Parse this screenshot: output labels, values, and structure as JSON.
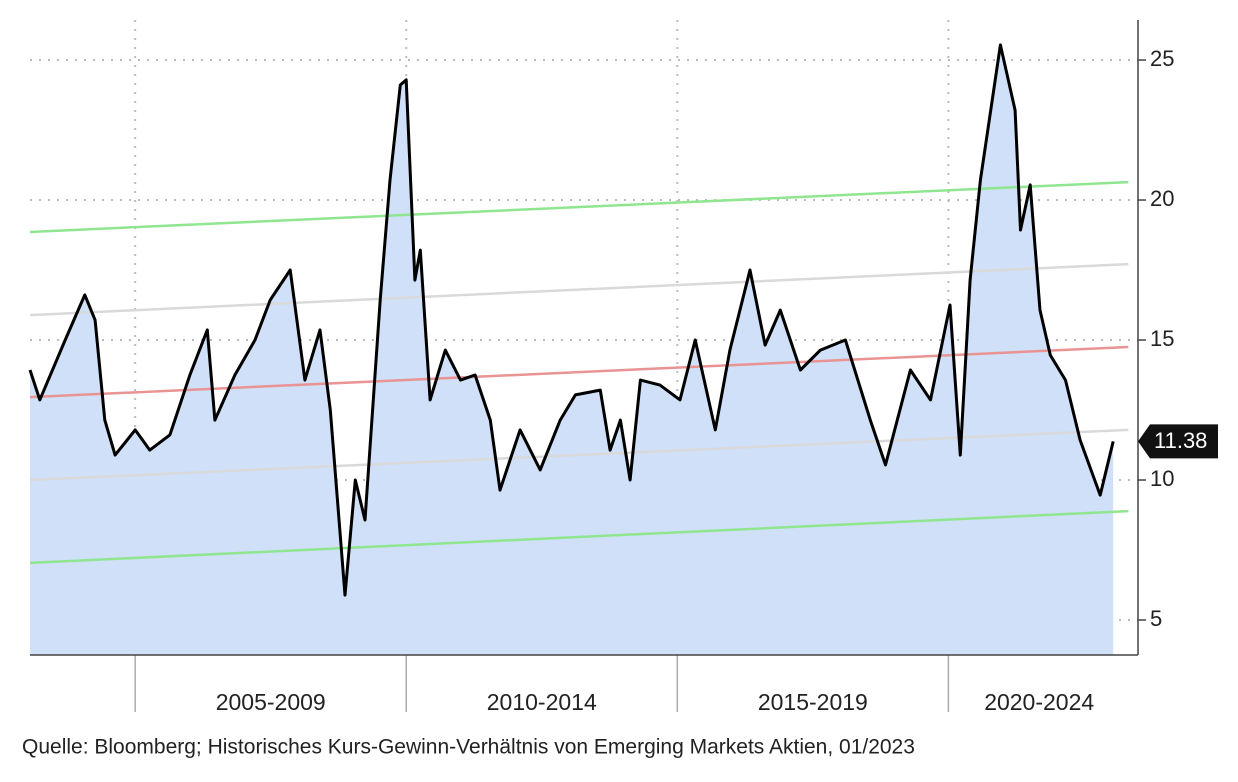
{
  "chart_data": {
    "type": "area",
    "source": "Quelle: Bloomberg; Historisches Kurs-Gewinn-Verhältnis von Emerging Markets Aktien, 01/2023",
    "x": [
      2003.06,
      2003.24,
      2003.71,
      2004.07,
      2004.26,
      2004.44,
      2004.63,
      2005.0,
      2005.27,
      2005.64,
      2006.01,
      2006.33,
      2006.47,
      2006.84,
      2007.21,
      2007.49,
      2007.86,
      2008.13,
      2008.41,
      2008.6,
      2008.87,
      2009.06,
      2009.24,
      2009.52,
      2009.7,
      2009.89,
      2010.0,
      2010.16,
      2010.26,
      2010.44,
      2010.72,
      2011.0,
      2011.27,
      2011.55,
      2011.73,
      2012.1,
      2012.47,
      2012.84,
      2013.12,
      2013.58,
      2013.76,
      2013.95,
      2014.13,
      2014.32,
      2014.68,
      2015.05,
      2015.33,
      2015.7,
      2015.97,
      2016.34,
      2016.62,
      2016.9,
      2017.27,
      2017.64,
      2018.1,
      2018.56,
      2018.84,
      2019.3,
      2019.67,
      2020.03,
      2020.22,
      2020.4,
      2020.59,
      2020.96,
      2021.23,
      2021.33,
      2021.51,
      2021.69,
      2021.88,
      2022.16,
      2022.43,
      2022.8,
      2023.04
    ],
    "series": [
      {
        "color": "#000000",
        "fill": "#cfe0f8",
        "values": [
          13.93,
          12.86,
          15,
          16.61,
          15.71,
          12.14,
          10.89,
          11.79,
          11.07,
          11.61,
          13.75,
          15.36,
          12.14,
          13.75,
          15,
          16.43,
          17.5,
          13.57,
          15.36,
          12.5,
          5.89,
          10,
          8.57,
          16.43,
          20.71,
          24.11,
          24.29,
          17.14,
          18.21,
          12.86,
          14.64,
          13.57,
          13.75,
          12.14,
          9.64,
          11.79,
          10.36,
          12.14,
          13.04,
          13.21,
          11.07,
          12.14,
          10,
          13.57,
          13.39,
          12.86,
          15,
          11.79,
          14.64,
          17.5,
          14.82,
          16.07,
          13.93,
          14.64,
          15,
          12.14,
          10.54,
          13.93,
          12.86,
          16.25,
          10.89,
          17.14,
          20.71,
          25.54,
          23.21,
          18.93,
          20.54,
          16.07,
          14.46,
          13.57,
          11.43,
          9.46,
          11.38
        ]
      }
    ],
    "reference_lines": [
      {
        "color": "#8fe68f",
        "x": [
          2003.06,
          2023.32
        ],
        "values": [
          18.86,
          20.64
        ]
      },
      {
        "color": "#d9d9d9",
        "x": [
          2003.06,
          2023.32
        ],
        "values": [
          15.89,
          17.71
        ]
      },
      {
        "color": "#e99393",
        "x": [
          2003.06,
          2023.32
        ],
        "values": [
          12.96,
          14.75
        ]
      },
      {
        "color": "#d9d9d9",
        "x": [
          2003.06,
          2023.32
        ],
        "values": [
          10,
          11.79
        ]
      },
      {
        "color": "#8fe68f",
        "x": [
          2003.06,
          2023.32
        ],
        "values": [
          7.04,
          8.89
        ]
      }
    ],
    "x_periods": [
      {
        "label": "2005-2009",
        "start": 2005,
        "end": 2010
      },
      {
        "label": "2010-2014",
        "start": 2010,
        "end": 2015
      },
      {
        "label": "2015-2019",
        "start": 2015,
        "end": 2020
      },
      {
        "label": "2020-2024",
        "start": 2020,
        "end": 2025
      }
    ],
    "xlim": [
      2003.06,
      2023.35
    ],
    "xticks": [
      2005,
      2010,
      2015,
      2020
    ],
    "ylim": [
      3.75,
      26.43
    ],
    "yticks": [
      5,
      10,
      15,
      20,
      25
    ],
    "grid": true,
    "y_axis_side": "right"
  }
}
